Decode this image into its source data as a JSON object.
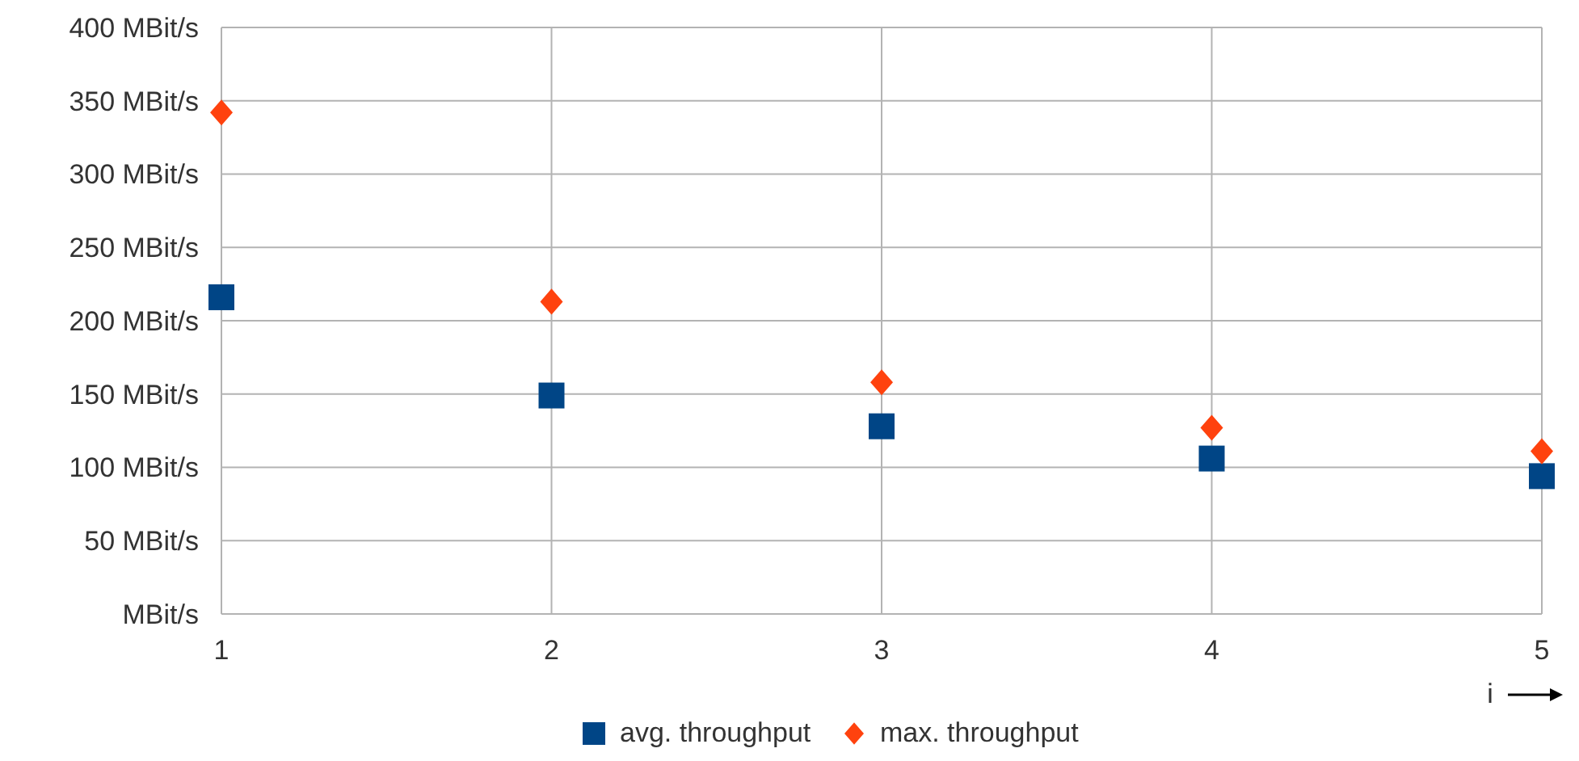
{
  "chart_data": {
    "type": "scatter",
    "xlabel": "i",
    "x": [
      1,
      2,
      3,
      4,
      5
    ],
    "xlim": [
      1,
      5
    ],
    "xticks": [
      1,
      2,
      3,
      4,
      5
    ],
    "ylim": [
      0,
      400
    ],
    "yticks": [
      {
        "value": 0,
        "label": "MBit/s"
      },
      {
        "value": 50,
        "label": "50 MBit/s"
      },
      {
        "value": 100,
        "label": "100 MBit/s"
      },
      {
        "value": 150,
        "label": "150 MBit/s"
      },
      {
        "value": 200,
        "label": "200 MBit/s"
      },
      {
        "value": 250,
        "label": "250 MBit/s"
      },
      {
        "value": 300,
        "label": "300 MBit/s"
      },
      {
        "value": 350,
        "label": "350 MBit/s"
      },
      {
        "value": 400,
        "label": "400 MBit/s"
      }
    ],
    "grid": true,
    "legend": "bottom",
    "series": [
      {
        "name": "avg. throughput",
        "color": "#004586",
        "marker": "square",
        "values": [
          216,
          149,
          128,
          106,
          94
        ]
      },
      {
        "name": "max. throughput",
        "color": "#ff420e",
        "marker": "diamond",
        "values": [
          342,
          213,
          158,
          127,
          111
        ]
      }
    ]
  }
}
